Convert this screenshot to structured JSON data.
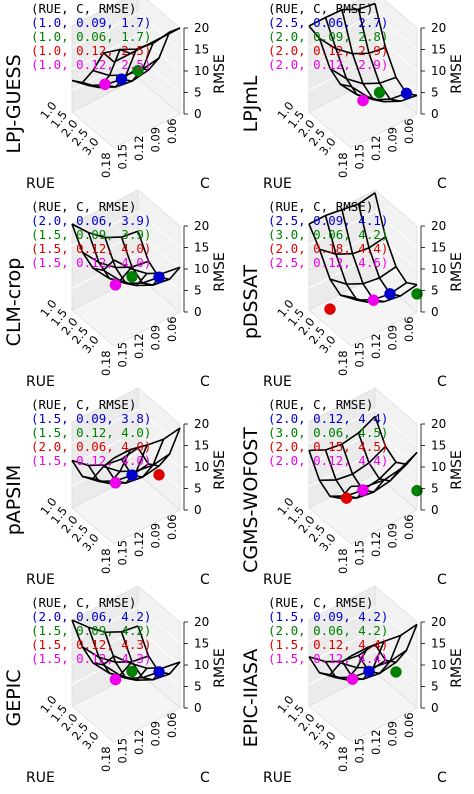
{
  "figure": {
    "legend_header": "(RUE, C, RMSE)",
    "zlabel": "RMSE",
    "xlabel": "RUE",
    "ylabel": "C",
    "rue_ticks": [
      "1.0",
      "1.5",
      "2.0",
      "2.5",
      "3.0"
    ],
    "c_ticks": [
      "0.06",
      "0.09",
      "0.12",
      "0.15",
      "0.18"
    ],
    "rmse_ticks": [
      "0",
      "5",
      "10",
      "15",
      "20"
    ],
    "marker_colors": [
      "#0000cc",
      "#008000",
      "#dd0000",
      "#ee00ee"
    ]
  },
  "chart_data": [
    {
      "type": "surface",
      "title": "LPJ-GUESS",
      "xlabel": "RUE",
      "ylabel": "C",
      "zlabel": "RMSE",
      "zlim": [
        0,
        20
      ],
      "points": [
        {
          "label": "(1.0, 0.09, 1.7)",
          "color": "#0000cc",
          "rue": 1.0,
          "c": 0.09,
          "rmse": 1.7
        },
        {
          "label": "(1.0, 0.06, 1.7)",
          "color": "#008000",
          "rue": 1.0,
          "c": 0.06,
          "rmse": 1.7
        },
        {
          "label": "(1.0, 0.12, 2.5)",
          "color": "#dd0000",
          "rue": 1.0,
          "c": 0.12,
          "rmse": 2.5
        },
        {
          "label": "(1.0, 0.12, 2.5)",
          "color": "#ee00ee",
          "rue": 1.0,
          "c": 0.12,
          "rmse": 2.5
        }
      ]
    },
    {
      "type": "surface",
      "title": "LPJmL",
      "xlabel": "RUE",
      "ylabel": "C",
      "zlabel": "RMSE",
      "zlim": [
        0,
        20
      ],
      "points": [
        {
          "label": "(2.5, 0.06, 2.7)",
          "color": "#0000cc",
          "rue": 2.5,
          "c": 0.06,
          "rmse": 2.7
        },
        {
          "label": "(2.0, 0.09, 2.8)",
          "color": "#008000",
          "rue": 2.0,
          "c": 0.09,
          "rmse": 2.8
        },
        {
          "label": "(2.0, 0.12, 2.9)",
          "color": "#dd0000",
          "rue": 2.0,
          "c": 0.12,
          "rmse": 2.9
        },
        {
          "label": "(2.0, 0.12, 2.9)",
          "color": "#ee00ee",
          "rue": 2.0,
          "c": 0.12,
          "rmse": 2.9
        }
      ]
    },
    {
      "type": "surface",
      "title": "CLM-crop",
      "xlabel": "RUE",
      "ylabel": "C",
      "zlabel": "RMSE",
      "zlim": [
        0,
        20
      ],
      "points": [
        {
          "label": "(2.0, 0.06, 3.9)",
          "color": "#0000cc",
          "rue": 2.0,
          "c": 0.06,
          "rmse": 3.9
        },
        {
          "label": "(1.5, 0.09, 3.9)",
          "color": "#008000",
          "rue": 1.5,
          "c": 0.09,
          "rmse": 3.9
        },
        {
          "label": "(1.5, 0.12, 4.0)",
          "color": "#dd0000",
          "rue": 1.5,
          "c": 0.12,
          "rmse": 4.0
        },
        {
          "label": "(1.5, 0.12, 4.0)",
          "color": "#ee00ee",
          "rue": 1.5,
          "c": 0.12,
          "rmse": 4.0
        }
      ]
    },
    {
      "type": "surface",
      "title": "pDSSAT",
      "xlabel": "RUE",
      "ylabel": "C",
      "zlabel": "RMSE",
      "zlim": [
        0,
        20
      ],
      "points": [
        {
          "label": "(2.5, 0.09, 4.1)",
          "color": "#0000cc",
          "rue": 2.5,
          "c": 0.09,
          "rmse": 4.1
        },
        {
          "label": "(3.0, 0.06, 4.2)",
          "color": "#008000",
          "rue": 3.0,
          "c": 0.06,
          "rmse": 4.2
        },
        {
          "label": "(2.0, 0.18, 4.4)",
          "color": "#dd0000",
          "rue": 2.0,
          "c": 0.18,
          "rmse": 4.4
        },
        {
          "label": "(2.5, 0.12, 4.6)",
          "color": "#ee00ee",
          "rue": 2.5,
          "c": 0.12,
          "rmse": 4.6
        }
      ]
    },
    {
      "type": "surface",
      "title": "pAPSIM",
      "xlabel": "RUE",
      "ylabel": "C",
      "zlabel": "RMSE",
      "zlim": [
        0,
        20
      ],
      "points": [
        {
          "label": "(1.5, 0.09, 3.8)",
          "color": "#0000cc",
          "rue": 1.5,
          "c": 0.09,
          "rmse": 3.8
        },
        {
          "label": "(1.5, 0.12, 4.0)",
          "color": "#008000",
          "rue": 1.5,
          "c": 0.12,
          "rmse": 4.0
        },
        {
          "label": "(2.0, 0.06, 4.0)",
          "color": "#dd0000",
          "rue": 2.0,
          "c": 0.06,
          "rmse": 4.0
        },
        {
          "label": "(1.5, 0.12, 4.0)",
          "color": "#ee00ee",
          "rue": 1.5,
          "c": 0.12,
          "rmse": 4.0
        }
      ]
    },
    {
      "type": "surface",
      "title": "CGMS-WOFOST",
      "xlabel": "RUE",
      "ylabel": "C",
      "zlabel": "RMSE",
      "zlim": [
        0,
        20
      ],
      "points": [
        {
          "label": "(2.0, 0.12, 4.4)",
          "color": "#0000cc",
          "rue": 2.0,
          "c": 0.12,
          "rmse": 4.4
        },
        {
          "label": "(3.0, 0.06, 4.5)",
          "color": "#008000",
          "rue": 3.0,
          "c": 0.06,
          "rmse": 4.5
        },
        {
          "label": "(2.0, 0.15, 4.5)",
          "color": "#dd0000",
          "rue": 2.0,
          "c": 0.15,
          "rmse": 4.5
        },
        {
          "label": "(2.0, 0.12, 4.4)",
          "color": "#ee00ee",
          "rue": 2.0,
          "c": 0.12,
          "rmse": 4.4
        }
      ]
    },
    {
      "type": "surface",
      "title": "GEPIC",
      "xlabel": "RUE",
      "ylabel": "C",
      "zlabel": "RMSE",
      "zlim": [
        0,
        20
      ],
      "points": [
        {
          "label": "(2.0, 0.06, 4.2)",
          "color": "#0000cc",
          "rue": 2.0,
          "c": 0.06,
          "rmse": 4.2
        },
        {
          "label": "(1.5, 0.09, 4.2)",
          "color": "#008000",
          "rue": 1.5,
          "c": 0.09,
          "rmse": 4.2
        },
        {
          "label": "(1.5, 0.12, 4.3)",
          "color": "#dd0000",
          "rue": 1.5,
          "c": 0.12,
          "rmse": 4.3
        },
        {
          "label": "(1.5, 0.12, 4.3)",
          "color": "#ee00ee",
          "rue": 1.5,
          "c": 0.12,
          "rmse": 4.3
        }
      ]
    },
    {
      "type": "surface",
      "title": "EPIC-IIASA",
      "xlabel": "RUE",
      "ylabel": "C",
      "zlabel": "RMSE",
      "zlim": [
        0,
        20
      ],
      "points": [
        {
          "label": "(1.5, 0.09, 4.2)",
          "color": "#0000cc",
          "rue": 1.5,
          "c": 0.09,
          "rmse": 4.2
        },
        {
          "label": "(2.0, 0.06, 4.2)",
          "color": "#008000",
          "rue": 2.0,
          "c": 0.06,
          "rmse": 4.2
        },
        {
          "label": "(1.5, 0.12, 4.4)",
          "color": "#dd0000",
          "rue": 1.5,
          "c": 0.12,
          "rmse": 4.4
        },
        {
          "label": "(1.5, 0.12, 4.4)",
          "color": "#ee00ee",
          "rue": 1.5,
          "c": 0.12,
          "rmse": 4.4
        }
      ]
    }
  ]
}
